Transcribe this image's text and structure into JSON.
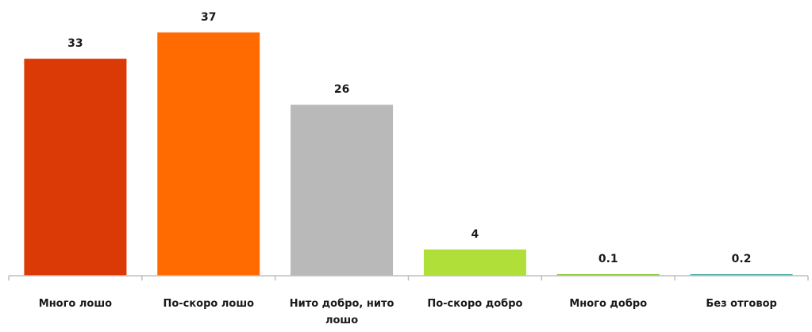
{
  "chart_data": {
    "type": "bar",
    "title": "",
    "xlabel": "",
    "ylabel": "",
    "categories": [
      "Много лошо",
      "По-скоро лошо",
      "Нито добро, нито лошо",
      "По-скоро добро",
      "Много добро",
      "Без отговор"
    ],
    "category_lines": [
      [
        "Много лошо"
      ],
      [
        "По-скоро лошо"
      ],
      [
        "Нито добро, нито",
        "лошо"
      ],
      [
        "По-скоро добро"
      ],
      [
        "Много добро"
      ],
      [
        "Без отговор"
      ]
    ],
    "values": [
      33,
      37,
      26,
      4,
      0.1,
      0.2
    ],
    "value_labels": [
      "33",
      "37",
      "26",
      "4",
      "0.1",
      "0.2"
    ],
    "colors": [
      "#DB3A06",
      "#FF6B00",
      "#B9B9B9",
      "#B0DF3A",
      "#8CC63F",
      "#4BAFA8"
    ],
    "ylim": [
      0,
      40
    ],
    "grid": false,
    "legend": "none"
  }
}
